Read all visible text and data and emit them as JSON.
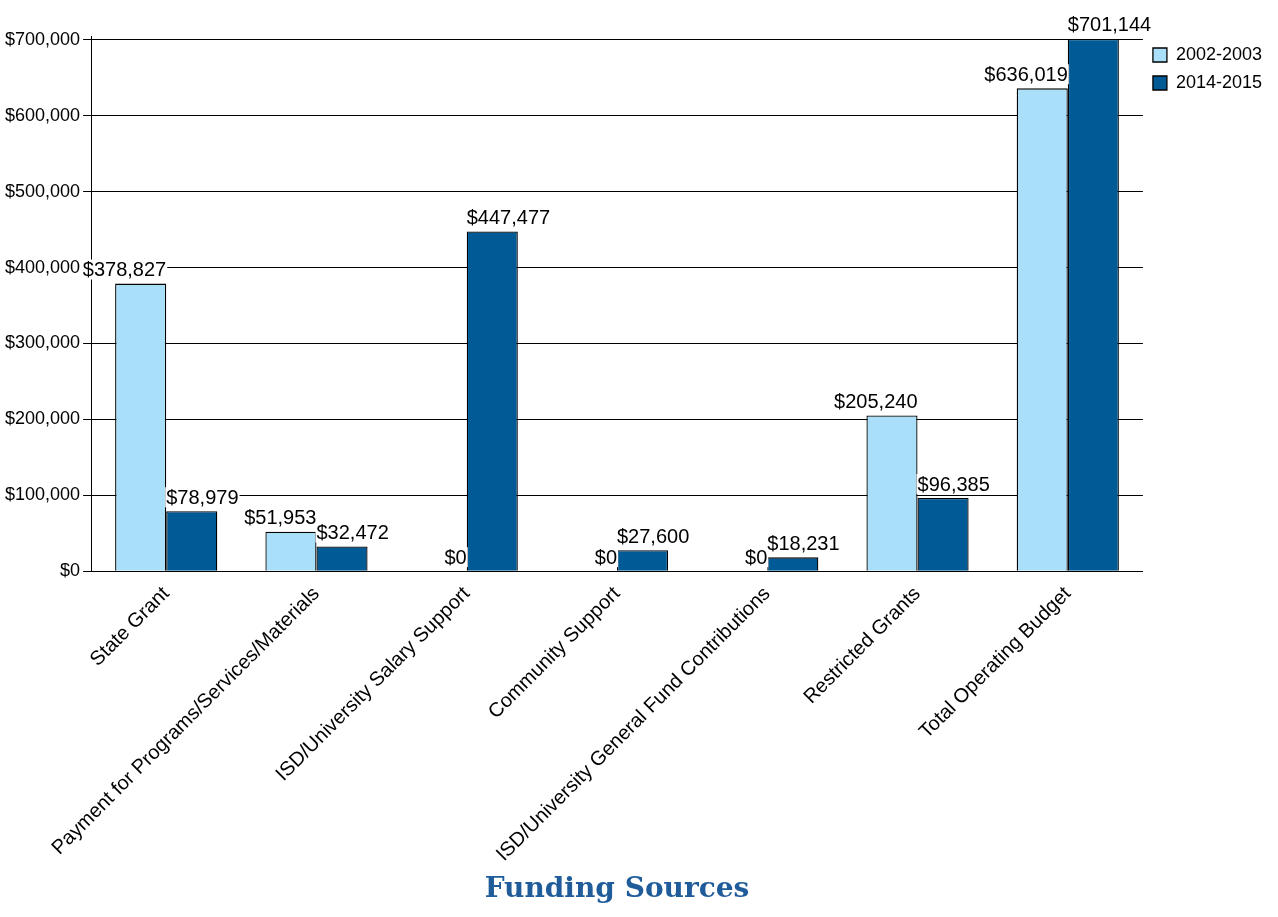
{
  "chart_data": {
    "type": "bar",
    "xlabel": "Funding Sources",
    "categories": [
      "State Grant",
      "Payment for Programs/Services/Materials",
      "ISD/University Salary Support",
      "Community Support",
      "ISD/University General Fund Contributions",
      "Restricted Grants",
      "Total Operating Budget"
    ],
    "series": [
      {
        "name": "2002-2003",
        "color": "#a9dff8",
        "values": [
          378827,
          51953,
          0,
          0,
          0,
          205240,
          636019
        ],
        "value_labels": [
          "$378,827",
          "$51,953",
          "$0",
          "$0",
          "$0",
          "$205,240",
          "$636,019"
        ]
      },
      {
        "name": "2014-2015",
        "color": "#005a96",
        "values": [
          78979,
          32472,
          447477,
          27600,
          18231,
          96385,
          701144
        ],
        "value_labels": [
          "$78,979",
          "$32,472",
          "$447,477",
          "$27,600",
          "$18,231",
          "$96,385",
          "$701,144"
        ]
      }
    ],
    "ylim": [
      0,
      705000
    ],
    "yticks": [
      {
        "value": 0,
        "label": "$0"
      },
      {
        "value": 100000,
        "label": "$100,000"
      },
      {
        "value": 200000,
        "label": "$200,000"
      },
      {
        "value": 300000,
        "label": "$300,000"
      },
      {
        "value": 400000,
        "label": "$400,000"
      },
      {
        "value": 500000,
        "label": "$500,000"
      },
      {
        "value": 600000,
        "label": "$600,000"
      },
      {
        "value": 700000,
        "label": "$700,000"
      }
    ],
    "grid": "y",
    "legend": "top right"
  }
}
